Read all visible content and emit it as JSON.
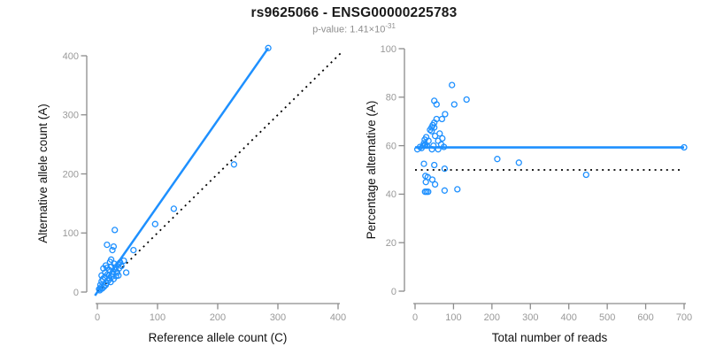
{
  "header": {
    "title": "rs9625066 - ENSG00000225783",
    "subtitle_prefix": "p-value: 1.41×10",
    "subtitle_exponent": "-31"
  },
  "colors": {
    "accent_blue": "#1E90FF",
    "axis_gray": "#8c8c8c",
    "tick_label_gray": "#999999",
    "axis_title_black": "#111111",
    "dotted_black": "#000000"
  },
  "chart_data": [
    {
      "name": "allele-count-scatter",
      "type": "scatter",
      "xlabel": "Reference allele count (C)",
      "ylabel": "Alternative allele count (A)",
      "xticks": [
        0,
        100,
        200,
        300,
        400
      ],
      "yticks": [
        0,
        100,
        200,
        300,
        400
      ],
      "xlim": [
        0,
        410
      ],
      "ylim": [
        0,
        415
      ],
      "grid": false,
      "lines": [
        {
          "name": "regression-line",
          "from": [
            -4,
            -6
          ],
          "to": [
            284,
            413
          ],
          "style": "solid",
          "color": "#1E90FF",
          "width": 2.5
        },
        {
          "name": "identity-line",
          "from": [
            0,
            0
          ],
          "to": [
            408,
            408
          ],
          "style": "dotted",
          "color": "#000000",
          "width": 1.8
        }
      ],
      "points": [
        [
          284,
          413
        ],
        [
          227,
          216
        ],
        [
          127,
          141
        ],
        [
          96,
          115
        ],
        [
          29,
          105
        ],
        [
          16,
          80
        ],
        [
          27,
          77
        ],
        [
          25,
          71
        ],
        [
          60,
          71
        ],
        [
          48,
          33
        ],
        [
          44,
          53
        ],
        [
          23,
          55
        ],
        [
          21,
          51
        ],
        [
          38,
          50
        ],
        [
          35,
          47
        ],
        [
          28,
          48
        ],
        [
          40,
          44
        ],
        [
          23,
          43
        ],
        [
          30,
          42
        ],
        [
          36,
          40
        ],
        [
          14,
          45
        ],
        [
          16,
          41
        ],
        [
          10,
          40
        ],
        [
          20,
          37
        ],
        [
          30,
          39
        ],
        [
          33,
          33
        ],
        [
          26,
          35
        ],
        [
          13,
          33
        ],
        [
          25,
          30
        ],
        [
          17,
          30
        ],
        [
          35,
          28
        ],
        [
          7,
          28
        ],
        [
          19,
          28
        ],
        [
          31,
          27
        ],
        [
          24,
          26
        ],
        [
          12,
          25
        ],
        [
          20,
          23
        ],
        [
          9,
          22
        ],
        [
          27,
          22
        ],
        [
          7,
          18
        ],
        [
          15,
          15
        ],
        [
          22,
          17
        ],
        [
          18,
          19
        ],
        [
          5,
          12
        ],
        [
          14,
          12
        ],
        [
          11,
          9
        ],
        [
          8,
          6
        ],
        [
          6,
          8
        ],
        [
          3,
          5
        ],
        [
          4,
          3
        ]
      ]
    },
    {
      "name": "percentage-vs-reads-scatter",
      "type": "scatter",
      "xlabel": "Total number of reads",
      "ylabel": "Percentage alternative (A)",
      "xticks": [
        0,
        100,
        200,
        300,
        400,
        500,
        600,
        700
      ],
      "yticks": [
        0,
        20,
        40,
        60,
        80,
        100
      ],
      "xlim": [
        0,
        710
      ],
      "ylim": [
        0,
        100
      ],
      "grid": false,
      "lines": [
        {
          "name": "mean-percentage-line",
          "from": [
            0,
            59.3
          ],
          "to": [
            700,
            59.3
          ],
          "style": "solid",
          "color": "#1E90FF",
          "width": 2.6
        },
        {
          "name": "null-50pct-line",
          "from": [
            0,
            50
          ],
          "to": [
            697,
            50
          ],
          "style": "dotted",
          "color": "#000000",
          "width": 1.8
        }
      ],
      "points": [
        [
          700,
          59.3
        ],
        [
          445,
          48
        ],
        [
          270,
          53
        ],
        [
          214,
          54.5
        ],
        [
          110,
          42
        ],
        [
          96,
          85
        ],
        [
          134,
          79
        ],
        [
          102,
          77
        ],
        [
          50,
          78.5
        ],
        [
          56,
          77
        ],
        [
          78,
          73
        ],
        [
          70,
          71
        ],
        [
          56,
          71
        ],
        [
          50,
          69.5
        ],
        [
          46,
          68.5
        ],
        [
          43,
          67.5
        ],
        [
          50,
          67.5
        ],
        [
          39,
          66.5
        ],
        [
          43,
          66
        ],
        [
          64,
          65
        ],
        [
          52,
          64
        ],
        [
          29,
          63.5
        ],
        [
          71,
          63
        ],
        [
          25,
          62.5
        ],
        [
          35,
          62
        ],
        [
          60,
          62
        ],
        [
          23,
          61
        ],
        [
          27,
          60.5
        ],
        [
          31,
          60
        ],
        [
          25,
          60
        ],
        [
          21,
          60
        ],
        [
          48,
          60
        ],
        [
          68,
          60.5
        ],
        [
          75,
          59.5
        ],
        [
          13,
          59.5
        ],
        [
          6,
          58.5
        ],
        [
          17,
          59
        ],
        [
          60,
          58.5
        ],
        [
          44,
          58.5
        ],
        [
          23,
          52.5
        ],
        [
          50,
          52
        ],
        [
          77,
          50.5
        ],
        [
          27,
          47.5
        ],
        [
          33,
          47
        ],
        [
          45,
          46
        ],
        [
          28,
          45
        ],
        [
          52,
          44
        ],
        [
          26,
          41
        ],
        [
          30,
          41
        ],
        [
          34,
          41
        ],
        [
          77,
          41.5
        ]
      ]
    }
  ]
}
